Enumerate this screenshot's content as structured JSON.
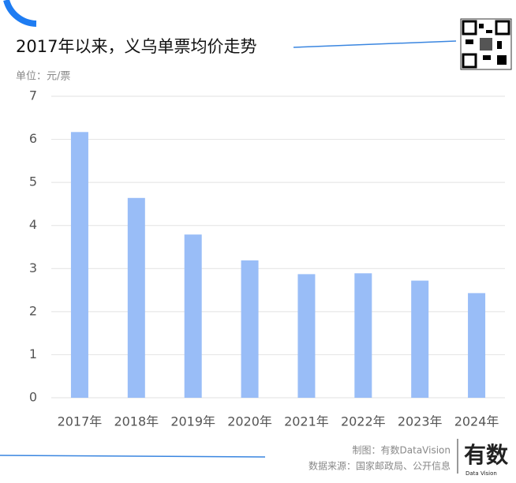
{
  "chart_data": {
    "type": "bar",
    "title": "2017年以来，义乌单票均价走势",
    "unit_label": "单位：元/票",
    "categories": [
      "2017年",
      "2018年",
      "2019年",
      "2020年",
      "2021年",
      "2022年",
      "2023年",
      "2024年"
    ],
    "values": [
      6.17,
      4.64,
      3.79,
      3.19,
      2.87,
      2.89,
      2.72,
      2.43
    ],
    "color": "#99bdf7",
    "ylim": [
      0,
      7
    ],
    "yticks": [
      0,
      1,
      2,
      3,
      4,
      5,
      6,
      7
    ],
    "grid": true
  },
  "footer": {
    "credit": "制图：有数DataVision",
    "source": "数据来源：国家邮政局、公开信息",
    "logo": "有数",
    "logo_sub": "Data Vision"
  }
}
